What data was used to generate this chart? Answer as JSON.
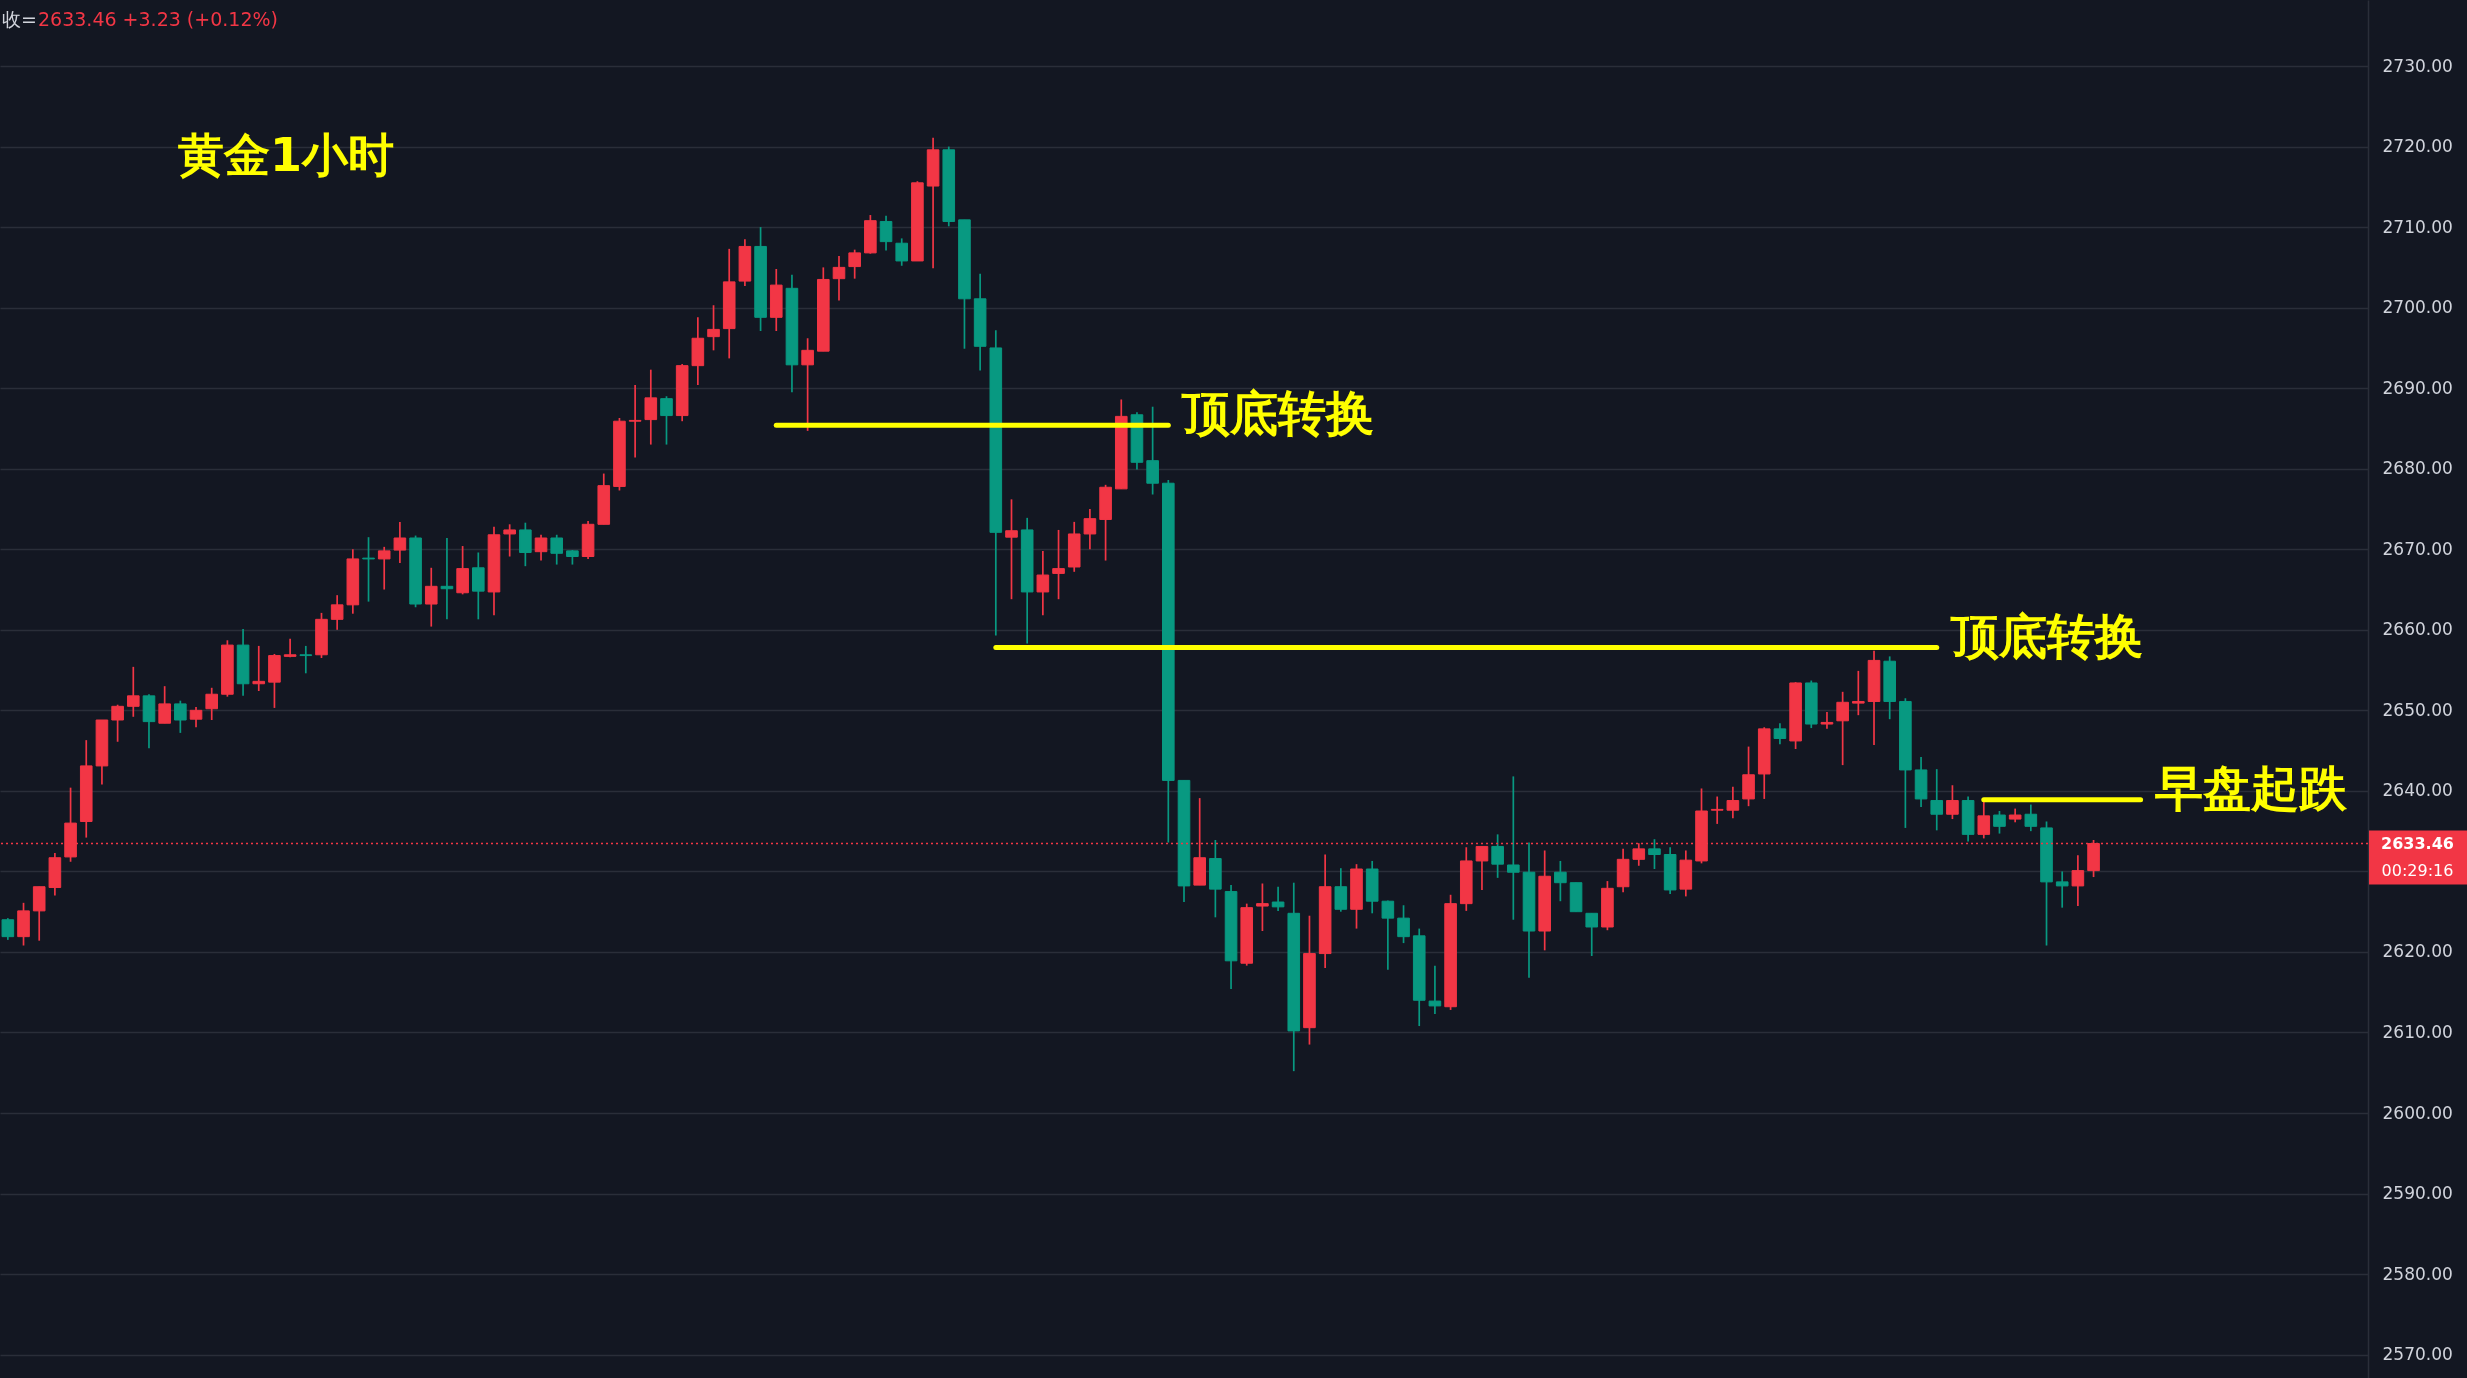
{
  "chart_data": {
    "type": "candlestick",
    "title": "黄金1小时",
    "categories": [
      null,
      null,
      null,
      null,
      null,
      null,
      null,
      null,
      null,
      null,
      null,
      null,
      null,
      null,
      null,
      null,
      null,
      null,
      null,
      null,
      null,
      null,
      null,
      null,
      null,
      null,
      null,
      null,
      null,
      null,
      null,
      null,
      null,
      null,
      null,
      null,
      null,
      null,
      null,
      null,
      null,
      null,
      null,
      null,
      null,
      null,
      null,
      null,
      null,
      null,
      null,
      null,
      null,
      null,
      null,
      null,
      null,
      null,
      null,
      null,
      null,
      null,
      null,
      null,
      null,
      null,
      null,
      null,
      null,
      null,
      null,
      null,
      null,
      null,
      null,
      null,
      null,
      null,
      null,
      null,
      null,
      null,
      null,
      null,
      null,
      null,
      null,
      null,
      null,
      null,
      null,
      null,
      null,
      null,
      null,
      null,
      null,
      null,
      null,
      null,
      null,
      null,
      null,
      null,
      null,
      null,
      null,
      null,
      null,
      null,
      null,
      null,
      null,
      null,
      null,
      null,
      null,
      null,
      null,
      null,
      null,
      null,
      null,
      null,
      null,
      null,
      null,
      null,
      null,
      null,
      null,
      null,
      null,
      null,
      null,
      null,
      null,
      null,
      null,
      null,
      null,
      null,
      null,
      null,
      null,
      null,
      null,
      null,
      null,
      null,
      null
    ],
    "ohlc": [
      [
        2624.0,
        2624.2,
        2621.5,
        2621.9
      ],
      [
        2621.9,
        2626.1,
        2620.8,
        2625.1
      ],
      [
        2625.1,
        2628.1,
        2621.4,
        2628.1
      ],
      [
        2628.0,
        2632.3,
        2627.0,
        2631.7
      ],
      [
        2631.8,
        2640.4,
        2631.2,
        2636.0
      ],
      [
        2636.2,
        2646.3,
        2634.2,
        2643.1
      ],
      [
        2643.1,
        2648.8,
        2640.8,
        2648.8
      ],
      [
        2648.8,
        2650.7,
        2646.1,
        2650.5
      ],
      [
        2650.5,
        2655.4,
        2649.2,
        2651.8
      ],
      [
        2651.8,
        2652.0,
        2645.3,
        2648.6
      ],
      [
        2648.4,
        2653.0,
        2648.4,
        2650.8
      ],
      [
        2650.8,
        2651.2,
        2647.2,
        2648.8
      ],
      [
        2648.9,
        2650.4,
        2647.9,
        2650.0
      ],
      [
        2650.2,
        2652.8,
        2648.8,
        2652.0
      ],
      [
        2652.0,
        2658.7,
        2651.7,
        2658.1
      ],
      [
        2658.1,
        2660.1,
        2651.8,
        2653.3
      ],
      [
        2653.3,
        2658.0,
        2652.4,
        2653.6
      ],
      [
        2653.5,
        2657.0,
        2650.3,
        2656.8
      ],
      [
        2656.7,
        2658.9,
        2656.6,
        2656.9
      ],
      [
        2656.9,
        2658.0,
        2654.6,
        2656.8
      ],
      [
        2656.9,
        2662.1,
        2656.5,
        2661.3
      ],
      [
        2661.3,
        2664.3,
        2660.0,
        2663.1
      ],
      [
        2663.1,
        2670.0,
        2662.0,
        2668.8
      ],
      [
        2668.9,
        2671.5,
        2663.5,
        2668.8
      ],
      [
        2668.8,
        2670.3,
        2665.0,
        2669.8
      ],
      [
        2669.9,
        2673.4,
        2668.3,
        2671.4
      ],
      [
        2671.4,
        2671.7,
        2662.8,
        2663.2
      ],
      [
        2663.2,
        2667.7,
        2660.4,
        2665.4
      ],
      [
        2665.4,
        2671.4,
        2661.3,
        2665.1
      ],
      [
        2664.6,
        2670.4,
        2664.4,
        2667.6
      ],
      [
        2667.7,
        2669.6,
        2661.3,
        2664.8
      ],
      [
        2664.7,
        2672.8,
        2661.8,
        2671.8
      ],
      [
        2671.9,
        2673.1,
        2669.1,
        2672.4
      ],
      [
        2672.4,
        2673.3,
        2667.9,
        2669.6
      ],
      [
        2669.7,
        2671.8,
        2668.6,
        2671.4
      ],
      [
        2671.4,
        2671.8,
        2668.1,
        2669.5
      ],
      [
        2669.8,
        2669.9,
        2668.1,
        2669.1
      ],
      [
        2669.1,
        2673.5,
        2668.8,
        2673.1
      ],
      [
        2673.1,
        2679.4,
        2673.1,
        2677.9
      ],
      [
        2677.8,
        2686.3,
        2677.3,
        2685.9
      ],
      [
        2685.9,
        2690.4,
        2681.4,
        2686.0
      ],
      [
        2686.1,
        2692.3,
        2683.0,
        2688.8
      ],
      [
        2688.7,
        2689.0,
        2683.0,
        2686.6
      ],
      [
        2686.6,
        2693.0,
        2685.9,
        2692.8
      ],
      [
        2692.8,
        2698.8,
        2690.4,
        2696.2
      ],
      [
        2696.4,
        2700.3,
        2694.7,
        2697.3
      ],
      [
        2697.4,
        2707.3,
        2693.7,
        2703.2
      ],
      [
        2703.3,
        2708.5,
        2702.7,
        2707.6
      ],
      [
        2707.6,
        2710.0,
        2697.1,
        2698.8
      ],
      [
        2698.8,
        2704.8,
        2697.1,
        2702.8
      ],
      [
        2702.4,
        2704.1,
        2689.5,
        2692.9
      ],
      [
        2692.9,
        2696.2,
        2684.7,
        2694.7
      ],
      [
        2694.6,
        2705.0,
        2694.6,
        2703.5
      ],
      [
        2703.6,
        2706.4,
        2700.9,
        2705.0
      ],
      [
        2705.1,
        2707.2,
        2703.6,
        2706.8
      ],
      [
        2706.8,
        2711.5,
        2706.7,
        2710.8
      ],
      [
        2710.7,
        2711.4,
        2707.1,
        2708.2
      ],
      [
        2708.0,
        2708.6,
        2705.2,
        2705.8
      ],
      [
        2705.8,
        2715.7,
        2705.8,
        2715.5
      ],
      [
        2715.1,
        2721.1,
        2704.9,
        2719.6
      ],
      [
        2719.6,
        2720.0,
        2710.1,
        2710.7
      ],
      [
        2710.9,
        2710.9,
        2694.9,
        2701.1
      ],
      [
        2701.1,
        2704.2,
        2692.2,
        2695.2
      ],
      [
        2695.0,
        2697.2,
        2659.3,
        2672.1
      ],
      [
        2671.5,
        2676.2,
        2663.8,
        2672.3
      ],
      [
        2672.4,
        2673.9,
        2658.3,
        2664.7
      ],
      [
        2664.7,
        2669.8,
        2661.8,
        2666.8
      ],
      [
        2667.0,
        2672.4,
        2663.8,
        2667.6
      ],
      [
        2667.8,
        2673.4,
        2667.2,
        2671.9
      ],
      [
        2671.9,
        2675.0,
        2670.0,
        2673.8
      ],
      [
        2673.7,
        2678.0,
        2668.6,
        2677.7
      ],
      [
        2677.5,
        2688.6,
        2677.5,
        2686.5
      ],
      [
        2686.7,
        2687.0,
        2679.9,
        2680.8
      ],
      [
        2681.0,
        2687.7,
        2676.8,
        2678.2
      ],
      [
        2678.2,
        2678.6,
        2633.6,
        2641.3
      ],
      [
        2641.3,
        2641.3,
        2626.2,
        2628.2
      ],
      [
        2628.3,
        2639.1,
        2628.3,
        2631.7
      ],
      [
        2631.6,
        2633.9,
        2624.3,
        2627.8
      ],
      [
        2627.5,
        2628.3,
        2615.4,
        2618.9
      ],
      [
        2618.6,
        2626.0,
        2618.3,
        2625.5
      ],
      [
        2625.7,
        2628.5,
        2622.6,
        2626.0
      ],
      [
        2626.2,
        2628.1,
        2625.1,
        2625.6
      ],
      [
        2624.8,
        2628.6,
        2605.2,
        2610.2
      ],
      [
        2610.6,
        2624.5,
        2608.5,
        2619.8
      ],
      [
        2619.8,
        2632.1,
        2618.0,
        2628.1
      ],
      [
        2628.1,
        2630.4,
        2625.0,
        2625.3
      ],
      [
        2625.3,
        2630.9,
        2622.9,
        2630.3
      ],
      [
        2630.3,
        2631.3,
        2624.8,
        2626.3
      ],
      [
        2626.3,
        2626.4,
        2617.8,
        2624.2
      ],
      [
        2624.2,
        2625.8,
        2621.1,
        2621.9
      ],
      [
        2622.0,
        2622.9,
        2610.8,
        2614.0
      ],
      [
        2613.9,
        2618.3,
        2612.3,
        2613.3
      ],
      [
        2613.2,
        2627.1,
        2612.8,
        2626.0
      ],
      [
        2626.0,
        2633.0,
        2625.1,
        2631.3
      ],
      [
        2631.3,
        2633.1,
        2627.7,
        2633.1
      ],
      [
        2633.1,
        2634.6,
        2629.2,
        2630.9
      ],
      [
        2630.8,
        2641.8,
        2624.0,
        2629.9
      ],
      [
        2629.9,
        2633.6,
        2616.8,
        2622.6
      ],
      [
        2622.6,
        2632.6,
        2620.2,
        2629.4
      ],
      [
        2629.9,
        2631.3,
        2626.3,
        2628.6
      ],
      [
        2628.6,
        2628.6,
        2625.0,
        2625.0
      ],
      [
        2624.8,
        2624.8,
        2619.5,
        2623.1
      ],
      [
        2623.1,
        2628.8,
        2622.7,
        2627.9
      ],
      [
        2628.1,
        2632.8,
        2627.4,
        2631.5
      ],
      [
        2631.5,
        2633.5,
        2630.7,
        2632.8
      ],
      [
        2632.8,
        2634.0,
        2630.3,
        2632.1
      ],
      [
        2632.1,
        2633.0,
        2627.2,
        2627.7
      ],
      [
        2627.8,
        2632.6,
        2626.9,
        2631.4
      ],
      [
        2631.3,
        2640.3,
        2631.0,
        2637.5
      ],
      [
        2637.6,
        2639.3,
        2635.9,
        2637.7
      ],
      [
        2637.6,
        2640.5,
        2636.6,
        2638.8
      ],
      [
        2639.0,
        2645.5,
        2638.1,
        2642.0
      ],
      [
        2642.1,
        2647.9,
        2639.0,
        2647.7
      ],
      [
        2647.7,
        2648.4,
        2645.8,
        2646.5
      ],
      [
        2646.2,
        2653.5,
        2645.2,
        2653.4
      ],
      [
        2653.4,
        2653.7,
        2647.8,
        2648.3
      ],
      [
        2648.3,
        2649.8,
        2647.7,
        2648.5
      ],
      [
        2648.7,
        2652.3,
        2643.2,
        2651.0
      ],
      [
        2650.9,
        2654.9,
        2649.4,
        2651.1
      ],
      [
        2651.1,
        2657.4,
        2645.7,
        2656.2
      ],
      [
        2656.1,
        2656.7,
        2648.9,
        2651.1
      ],
      [
        2651.1,
        2651.5,
        2635.4,
        2642.6
      ],
      [
        2642.6,
        2644.2,
        2638.0,
        2639.0
      ],
      [
        2638.8,
        2642.7,
        2635.1,
        2637.1
      ],
      [
        2637.1,
        2640.7,
        2636.5,
        2638.8
      ],
      [
        2638.8,
        2639.3,
        2633.7,
        2634.6
      ],
      [
        2634.6,
        2638.8,
        2634.1,
        2636.9
      ],
      [
        2637.0,
        2637.5,
        2634.7,
        2635.6
      ],
      [
        2636.5,
        2637.8,
        2636.1,
        2637.0
      ],
      [
        2637.1,
        2638.3,
        2635.0,
        2635.6
      ],
      [
        2635.4,
        2636.2,
        2620.8,
        2628.7
      ],
      [
        2628.7,
        2630.0,
        2625.5,
        2628.2
      ],
      [
        2628.2,
        2632.0,
        2625.7,
        2630.1
      ],
      [
        2630.1,
        2633.9,
        2629.3,
        2633.46
      ],
      null,
      null,
      null,
      null,
      null,
      null,
      null,
      null,
      null,
      null,
      null,
      null,
      null,
      null,
      null,
      null,
      null
    ],
    "colors": [
      "#089981",
      "#f23645",
      "#f23645",
      "#f23645",
      "#f23645",
      "#f23645",
      "#f23645",
      "#f23645",
      "#f23645",
      "#089981",
      "#f23645",
      "#089981",
      "#f23645",
      "#f23645",
      "#f23645",
      "#089981",
      "#f23645",
      "#f23645",
      "#f23645",
      "#089981",
      "#f23645",
      "#f23645",
      "#f23645",
      "#089981",
      "#f23645",
      "#f23645",
      "#089981",
      "#f23645",
      "#089981",
      "#f23645",
      "#089981",
      "#f23645",
      "#f23645",
      "#089981",
      "#f23645",
      "#089981",
      "#089981",
      "#f23645",
      "#f23645",
      "#f23645",
      "#f23645",
      "#f23645",
      "#089981",
      "#f23645",
      "#f23645",
      "#f23645",
      "#f23645",
      "#f23645",
      "#089981",
      "#f23645",
      "#089981",
      "#f23645",
      "#f23645",
      "#f23645",
      "#f23645",
      "#f23645",
      "#089981",
      "#089981",
      "#f23645",
      "#f23645",
      "#089981",
      "#089981",
      "#089981",
      "#089981",
      "#f23645",
      "#089981",
      "#f23645",
      "#f23645",
      "#f23645",
      "#f23645",
      "#f23645",
      "#f23645",
      "#089981",
      "#089981",
      "#089981",
      "#089981",
      "#f23645",
      "#089981",
      "#089981",
      "#f23645",
      "#f23645",
      "#089981",
      "#089981",
      "#f23645",
      "#f23645",
      "#089981",
      "#f23645",
      "#089981",
      "#089981",
      "#089981",
      "#089981",
      "#089981",
      "#f23645",
      "#f23645",
      "#f23645",
      "#089981",
      "#089981",
      "#089981",
      "#f23645",
      "#089981",
      "#089981",
      "#089981",
      "#f23645",
      "#f23645",
      "#f23645",
      "#089981",
      "#089981",
      "#f23645",
      "#f23645",
      "#f23645",
      "#f23645",
      "#f23645",
      "#f23645",
      "#089981",
      "#f23645",
      "#089981",
      "#f23645",
      "#f23645",
      "#f23645",
      "#f23645",
      "#089981",
      "#089981",
      "#089981",
      "#089981",
      "#f23645",
      "#089981",
      "#f23645",
      "#089981",
      "#f23645",
      "#089981",
      "#089981",
      "#089981",
      "#f23645",
      "#f23645",
      null,
      null,
      null,
      null,
      null,
      null,
      null,
      null,
      null,
      null,
      null,
      null,
      null,
      null,
      null,
      null,
      null
    ],
    "series": [
      {
        "type": "line",
        "name": "顶底转换",
        "color": "#ffff00",
        "values": [
          null,
          null,
          null,
          null,
          null,
          null,
          null,
          null,
          null,
          null,
          null,
          null,
          null,
          null,
          null,
          null,
          null,
          null,
          null,
          null,
          null,
          null,
          null,
          null,
          null,
          null,
          null,
          null,
          null,
          null,
          null,
          null,
          null,
          null,
          null,
          null,
          null,
          null,
          null,
          null,
          null,
          null,
          null,
          null,
          null,
          null,
          null,
          null,
          null,
          2685.4,
          2685.4,
          2685.4,
          2685.4,
          2685.4,
          2685.4,
          2685.4,
          2685.4,
          2685.4,
          2685.4,
          2685.4,
          2685.4,
          2685.4,
          2685.4,
          2685.4,
          2685.4,
          2685.4,
          2685.4,
          2685.4,
          2685.4,
          2685.4,
          2685.4,
          2685.4,
          2685.4,
          2685.4,
          2685.4,
          null,
          null,
          null,
          null,
          null,
          null,
          null,
          null,
          null,
          null,
          null,
          null,
          null,
          null,
          null,
          null,
          null,
          null,
          null,
          null,
          null,
          null,
          null,
          null,
          null,
          null,
          null,
          null,
          null,
          null,
          null,
          null,
          null,
          null,
          null,
          null,
          null,
          null,
          null,
          null,
          null,
          null,
          null,
          null,
          null,
          null,
          null,
          null,
          null,
          null,
          null,
          null,
          null,
          null,
          null,
          null,
          null,
          null,
          null,
          null,
          null,
          null,
          null,
          null,
          null,
          null,
          null,
          null,
          null,
          null,
          null,
          null,
          null,
          null,
          null,
          null
        ]
      },
      {
        "type": "line",
        "name": "顶底转换",
        "color": "#ffff00",
        "values": [
          null,
          null,
          null,
          null,
          null,
          null,
          null,
          null,
          null,
          null,
          null,
          null,
          null,
          null,
          null,
          null,
          null,
          null,
          null,
          null,
          null,
          null,
          null,
          null,
          null,
          null,
          null,
          null,
          null,
          null,
          null,
          null,
          null,
          null,
          null,
          null,
          null,
          null,
          null,
          null,
          null,
          null,
          null,
          null,
          null,
          null,
          null,
          null,
          null,
          null,
          null,
          null,
          null,
          null,
          null,
          null,
          null,
          null,
          null,
          null,
          null,
          null,
          null,
          2657.8,
          2657.8,
          2657.8,
          2657.8,
          2657.8,
          2657.8,
          2657.8,
          2657.8,
          2657.8,
          2657.8,
          2657.8,
          2657.8,
          2657.8,
          2657.8,
          2657.8,
          2657.8,
          2657.8,
          2657.8,
          2657.8,
          2657.8,
          2657.8,
          2657.8,
          2657.8,
          2657.8,
          2657.8,
          2657.8,
          2657.8,
          2657.8,
          2657.8,
          2657.8,
          2657.8,
          2657.8,
          2657.8,
          2657.8,
          2657.8,
          2657.8,
          2657.8,
          2657.8,
          2657.8,
          2657.8,
          2657.8,
          2657.8,
          2657.8,
          2657.8,
          2657.8,
          2657.8,
          2657.8,
          2657.8,
          2657.8,
          2657.8,
          2657.8,
          2657.8,
          2657.8,
          2657.8,
          2657.8,
          2657.8,
          2657.8,
          2657.8,
          2657.8,
          2657.8,
          2657.8,
          null,
          null,
          null,
          null,
          null,
          null,
          null,
          null,
          null,
          null,
          null,
          null,
          null,
          null,
          null,
          null,
          null,
          null,
          null,
          null,
          null,
          null,
          null,
          null,
          null,
          null,
          null
        ]
      },
      {
        "type": "line",
        "name": "早盘起跌",
        "color": "#ffff00",
        "values": [
          null,
          null,
          null,
          null,
          null,
          null,
          null,
          null,
          null,
          null,
          null,
          null,
          null,
          null,
          null,
          null,
          null,
          null,
          null,
          null,
          null,
          null,
          null,
          null,
          null,
          null,
          null,
          null,
          null,
          null,
          null,
          null,
          null,
          null,
          null,
          null,
          null,
          null,
          null,
          null,
          null,
          null,
          null,
          null,
          null,
          null,
          null,
          null,
          null,
          null,
          null,
          null,
          null,
          null,
          null,
          null,
          null,
          null,
          null,
          null,
          null,
          null,
          null,
          null,
          null,
          null,
          null,
          null,
          null,
          null,
          null,
          null,
          null,
          null,
          null,
          null,
          null,
          null,
          null,
          null,
          null,
          null,
          null,
          null,
          null,
          null,
          null,
          null,
          null,
          null,
          null,
          null,
          null,
          null,
          null,
          null,
          null,
          null,
          null,
          null,
          null,
          null,
          null,
          null,
          null,
          null,
          null,
          null,
          null,
          null,
          null,
          null,
          null,
          null,
          null,
          null,
          null,
          null,
          null,
          null,
          null,
          null,
          null,
          null,
          null,
          null,
          2638.9,
          2638.9,
          2638.9,
          2638.9,
          2638.9,
          2638.9,
          2638.9,
          2638.9,
          2638.9,
          2638.9,
          2638.9,
          null,
          null,
          null,
          null,
          null,
          null,
          null,
          null,
          null,
          null,
          null,
          null,
          null,
          null
        ]
      }
    ],
    "ylim": [
      2567.1,
      2738.2
    ],
    "yticks": [
      {
        "value": 2570,
        "label": "2570.00"
      },
      {
        "value": 2580,
        "label": "2580.00"
      },
      {
        "value": 2590,
        "label": "2590.00"
      },
      {
        "value": 2600,
        "label": "2600.00"
      },
      {
        "value": 2610,
        "label": "2610.00"
      },
      {
        "value": 2620,
        "label": "2620.00"
      },
      {
        "value": 2630,
        "label": null
      },
      {
        "value": 2640,
        "label": "2640.00"
      },
      {
        "value": 2650,
        "label": "2650.00"
      },
      {
        "value": 2660,
        "label": "2660.00"
      },
      {
        "value": 2670,
        "label": "2670.00"
      },
      {
        "value": 2680,
        "label": "2680.00"
      },
      {
        "value": 2690,
        "label": "2690.00"
      },
      {
        "value": 2700,
        "label": "2700.00"
      },
      {
        "value": 2710,
        "label": "2710.00"
      },
      {
        "value": 2720,
        "label": "2720.00"
      },
      {
        "value": 2730,
        "label": "2730.00"
      }
    ],
    "ref_lines": [
      {
        "axis": "y",
        "value": 2633.46,
        "label": "2633.46",
        "color": "#f23645",
        "line_style": "dotted"
      }
    ],
    "annotations": [
      "收=",
      "2633.46 +3.23 (+0.12%)",
      "00:29:16"
    ],
    "grid": "y",
    "tick_labels": "y"
  }
}
